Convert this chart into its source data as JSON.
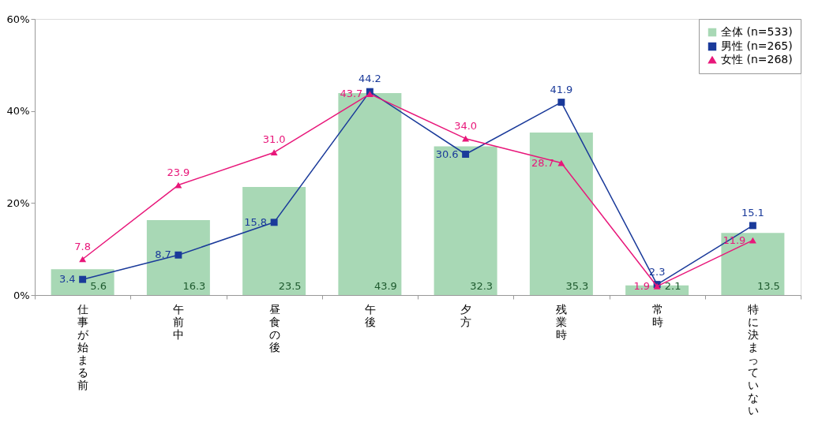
{
  "chart_data": {
    "type": "bar",
    "categories": [
      "仕事が始まる前",
      "午前中",
      "昼食の後",
      "午後",
      "夕方",
      "残業時",
      "常時",
      "特に決まっていない"
    ],
    "series": [
      {
        "name": "全体 (n=533)",
        "type": "bar",
        "color": "#a8d8b5",
        "values": [
          5.6,
          16.3,
          23.5,
          43.9,
          32.3,
          35.3,
          2.1,
          13.5
        ],
        "value_labels": [
          "5.6",
          "16.3",
          "23.5",
          "43.9",
          "32.3",
          "35.3",
          "2.1",
          "13.5"
        ]
      },
      {
        "name": "男性 (n=265)",
        "type": "line",
        "marker": "square",
        "color": "#1a3a9a",
        "values": [
          3.4,
          8.7,
          15.8,
          44.2,
          30.6,
          41.9,
          2.3,
          15.1
        ],
        "value_labels": [
          "3.4",
          "8.7",
          "15.8",
          "44.2",
          "30.6",
          "41.9",
          "2.3",
          "15.1"
        ]
      },
      {
        "name": "女性 (n=268)",
        "type": "line",
        "marker": "triangle",
        "color": "#e8177a",
        "values": [
          7.8,
          23.9,
          31.0,
          43.7,
          34.0,
          28.7,
          1.9,
          11.9
        ],
        "value_labels": [
          "7.8",
          "23.9",
          "31.0",
          "43.7",
          "34.0",
          "28.7",
          "1.9",
          "11.9"
        ]
      }
    ],
    "ylim": [
      0,
      60
    ],
    "yticks": [
      {
        "value": 0,
        "label": "0%"
      },
      {
        "value": 20,
        "label": "20%"
      },
      {
        "value": 40,
        "label": "40%"
      },
      {
        "value": 60,
        "label": "60%"
      }
    ],
    "grid": false,
    "legend": "top right"
  }
}
